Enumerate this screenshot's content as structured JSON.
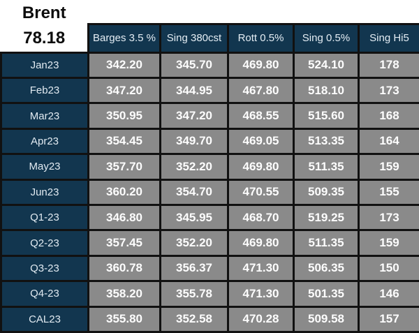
{
  "title": {
    "instrument": "Brent",
    "price": "78.18"
  },
  "table": {
    "columns": [
      "Barges 3.5 %",
      "Sing 380cst",
      "Rott 0.5%",
      "Sing 0.5%",
      "Sing Hi5"
    ],
    "rows": [
      {
        "label": "Jan23",
        "values": [
          "342.20",
          "345.70",
          "469.80",
          "524.10",
          "178"
        ]
      },
      {
        "label": "Feb23",
        "values": [
          "347.20",
          "344.95",
          "467.80",
          "518.10",
          "173"
        ]
      },
      {
        "label": "Mar23",
        "values": [
          "350.95",
          "347.20",
          "468.55",
          "515.60",
          "168"
        ]
      },
      {
        "label": "Apr23",
        "values": [
          "354.45",
          "349.70",
          "469.05",
          "513.35",
          "164"
        ]
      },
      {
        "label": "May23",
        "values": [
          "357.70",
          "352.20",
          "469.80",
          "511.35",
          "159"
        ]
      },
      {
        "label": "Jun23",
        "values": [
          "360.20",
          "354.70",
          "470.55",
          "509.35",
          "155"
        ]
      },
      {
        "label": "Q1-23",
        "values": [
          "346.80",
          "345.95",
          "468.70",
          "519.25",
          "173"
        ]
      },
      {
        "label": "Q2-23",
        "values": [
          "357.45",
          "352.20",
          "469.80",
          "511.35",
          "159"
        ]
      },
      {
        "label": "Q3-23",
        "values": [
          "360.78",
          "356.37",
          "471.30",
          "506.35",
          "150"
        ]
      },
      {
        "label": "Q4-23",
        "values": [
          "358.20",
          "355.78",
          "471.30",
          "501.35",
          "146"
        ]
      },
      {
        "label": "CAL23",
        "values": [
          "355.80",
          "352.58",
          "470.28",
          "509.58",
          "157"
        ]
      }
    ]
  },
  "colors": {
    "header_navy": "#12364f",
    "cell_gray": "#8a8a8a",
    "grid_border": "#111111",
    "title_text": "#0d0d0d",
    "cell_text": "#fdfdfd"
  }
}
